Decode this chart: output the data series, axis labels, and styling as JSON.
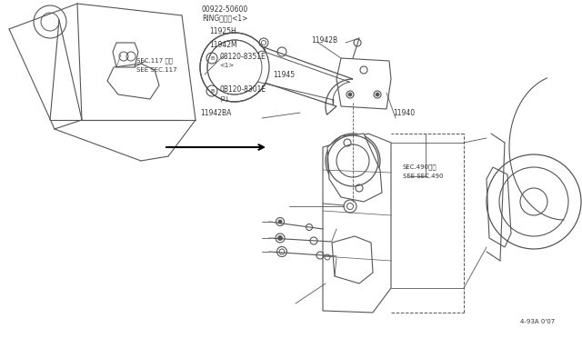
{
  "bg_color": "#ffffff",
  "line_color": "#555555",
  "text_color": "#333333",
  "fig_width": 6.4,
  "fig_height": 3.72,
  "dpi": 100,
  "diagram_ref": "4-93A 0'07",
  "labels": {
    "part1": "00922-50600",
    "part1b": "RINGリング<1>",
    "part2": "11925H",
    "part3": "11942M",
    "part4b": "08120-8351E",
    "part4c": "<1>",
    "part5": "11945",
    "part6b": "0B120-8301E",
    "part6c": "(2)",
    "part7": "11942BA",
    "part8": "11940",
    "part9": "11942B",
    "sec117a": "SEC.117 参照",
    "sec117b": "SEE SEC.117",
    "sec490a": "SEC.490参照",
    "sec490b": "SEE SEC.490",
    "B_symbol": "B"
  }
}
